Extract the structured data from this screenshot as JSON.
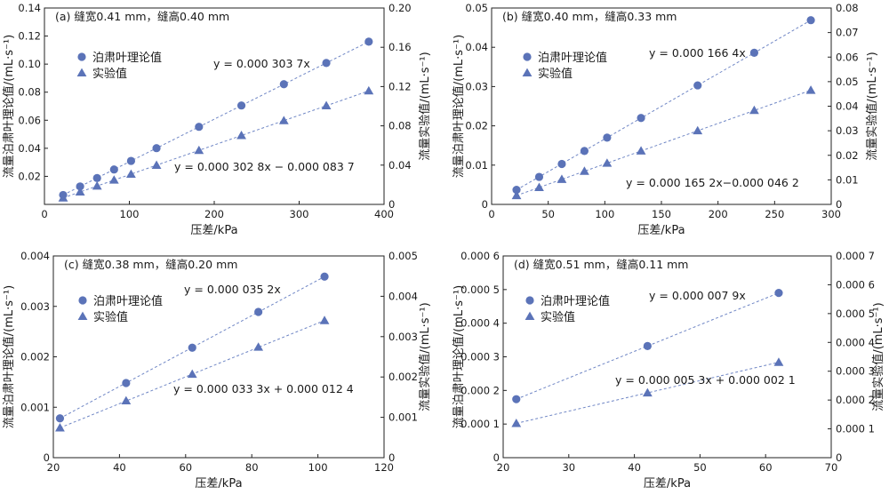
{
  "colors": {
    "marker": "#5b73b8",
    "line": "#6f86c5",
    "axis": "#222222"
  },
  "chart_data": [
    {
      "type": "scatter",
      "panel": "(a)",
      "title": "(a) 缝宽0.41 mm，缝高0.40 mm",
      "xlabel": "压差/kPa",
      "ylabel_left": "流量泊肃叶理论值/(mL·s⁻¹)",
      "ylabel_right": "流量实验值/(mL·s⁻¹)",
      "xlim": [
        0,
        400
      ],
      "ylim_left": [
        0,
        0.14
      ],
      "ylim_right": [
        0,
        0.2
      ],
      "xticks": [
        "0",
        "100",
        "200",
        "300",
        "400"
      ],
      "yticks_left": [
        "0.02",
        "0.04",
        "0.06",
        "0.08",
        "0.10",
        "0.12",
        "0.14"
      ],
      "yticks_right": [
        "0",
        "0.04",
        "0.08",
        "0.12",
        "0.16",
        "0.20"
      ],
      "legend": [
        "泊肃叶理论值",
        "实验值"
      ],
      "series": [
        {
          "name": "泊肃叶理论值",
          "marker": "circle",
          "axis": "left",
          "x": [
            22,
            42,
            62,
            82,
            102,
            132,
            182,
            232,
            282,
            332,
            382
          ],
          "y": [
            0.0067,
            0.0128,
            0.0188,
            0.0249,
            0.031,
            0.0401,
            0.0553,
            0.0705,
            0.0857,
            0.1008,
            0.116
          ],
          "fit": "y = 0.000 303 7x"
        },
        {
          "name": "实验值",
          "marker": "triangle",
          "axis": "right",
          "x": [
            22,
            42,
            62,
            82,
            102,
            132,
            182,
            232,
            282,
            332,
            382
          ],
          "y": [
            0.0066,
            0.0127,
            0.0187,
            0.0248,
            0.0308,
            0.0399,
            0.055,
            0.0702,
            0.0853,
            0.1005,
            0.1156
          ],
          "fit": "y = 0.000 302 8x − 0.000 083 7"
        }
      ]
    },
    {
      "type": "scatter",
      "panel": "(b)",
      "title": "(b) 缝宽0.40 mm，缝高0.33 mm",
      "xlabel": "压差/kPa",
      "ylabel_left": "流量泊肃叶理论值/(mL·s⁻¹)",
      "ylabel_right": "流量实验值/(mL·s⁻¹)",
      "xlim": [
        0,
        300
      ],
      "ylim_left": [
        0,
        0.05
      ],
      "ylim_right": [
        0,
        0.08
      ],
      "xticks": [
        "50",
        "100",
        "150",
        "200",
        "250",
        "300"
      ],
      "yticks_left": [
        "0",
        "0.01",
        "0.02",
        "0.03",
        "0.04",
        "0.05"
      ],
      "yticks_right": [
        "0",
        "0.01",
        "0.02",
        "0.03",
        "0.04",
        "0.05",
        "0.06",
        "0.07",
        "0.08"
      ],
      "legend": [
        "泊肃叶理论值",
        "实验值"
      ],
      "series": [
        {
          "name": "泊肃叶理论值",
          "marker": "circle",
          "axis": "left",
          "x": [
            22,
            42,
            62,
            82,
            102,
            132,
            182,
            232,
            282
          ],
          "y": [
            0.0037,
            0.007,
            0.0103,
            0.0136,
            0.017,
            0.022,
            0.0303,
            0.0386,
            0.0469
          ],
          "fit": "y = 0.000 166 4x"
        },
        {
          "name": "实验值",
          "marker": "triangle",
          "axis": "right",
          "x": [
            22,
            42,
            62,
            82,
            102,
            132,
            182,
            232,
            282
          ],
          "y": [
            0.0036,
            0.0069,
            0.0102,
            0.0135,
            0.0168,
            0.0218,
            0.03,
            0.0383,
            0.0465
          ],
          "fit": "y = 0.000 165 2x−0.000 046 2"
        }
      ]
    },
    {
      "type": "scatter",
      "panel": "(c)",
      "title": "(c) 缝宽0.38 mm，缝高0.20 mm",
      "xlabel": "压差/kPa",
      "ylabel_left": "流量泊肃叶理论值/(mL·s⁻¹)",
      "ylabel_right": "流量实验值/(mL·s⁻¹)",
      "xlim": [
        20,
        120
      ],
      "ylim_left": [
        0,
        0.004
      ],
      "ylim_right": [
        0,
        0.005
      ],
      "xticks": [
        "20",
        "40",
        "60",
        "80",
        "100",
        "120"
      ],
      "yticks_left": [
        "0",
        "0.001",
        "0.002",
        "0.003",
        "0.004"
      ],
      "yticks_right": [
        "0",
        "0.001",
        "0.002",
        "0.003",
        "0.004",
        "0.005"
      ],
      "legend": [
        "泊肃叶理论值",
        "实验值"
      ],
      "series": [
        {
          "name": "泊肃叶理论值",
          "marker": "circle",
          "axis": "left",
          "x": [
            22,
            42,
            62,
            82,
            102
          ],
          "y": [
            0.00078,
            0.00148,
            0.00218,
            0.00289,
            0.00359
          ],
          "fit": "y = 0.000 035 2x"
        },
        {
          "name": "实验值",
          "marker": "triangle",
          "axis": "right",
          "x": [
            22,
            42,
            62,
            82,
            102
          ],
          "y": [
            0.00074,
            0.00141,
            0.00207,
            0.00274,
            0.0034
          ],
          "fit": "y = 0.000 033 3x + 0.000 012 4"
        }
      ]
    },
    {
      "type": "scatter",
      "panel": "(d)",
      "title": "(d) 缝宽0.51 mm，缝高0.11 mm",
      "xlabel": "压差/kPa",
      "ylabel_left": "流量泊肃叶理论值/(mL·s⁻¹)",
      "ylabel_right": "流量实验值/(mL·s⁻¹)",
      "xlim": [
        20,
        70
      ],
      "ylim_left": [
        0,
        0.0006
      ],
      "ylim_right": [
        0,
        0.0007
      ],
      "xticks": [
        "20",
        "30",
        "40",
        "50",
        "60",
        "70"
      ],
      "yticks_left": [
        "0",
        "0.000 1",
        "0.000 2",
        "0.000 3",
        "0.000 4",
        "0.000 5",
        "0.000 6"
      ],
      "yticks_right": [
        "0",
        "0.000 1",
        "0.000 2",
        "0.000 3",
        "0.000 4",
        "0.000 5",
        "0.000 6",
        "0.000 7"
      ],
      "legend": [
        "泊肃叶理论值",
        "实验值"
      ],
      "series": [
        {
          "name": "泊肃叶理论值",
          "marker": "circle",
          "axis": "left",
          "x": [
            22,
            42,
            62
          ],
          "y": [
            0.000174,
            0.000332,
            0.00049
          ],
          "fit": "y = 0.000 007 9x"
        },
        {
          "name": "实验值",
          "marker": "triangle",
          "axis": "right",
          "x": [
            22,
            42,
            62
          ],
          "y": [
            0.000119,
            0.000225,
            0.000331
          ],
          "fit": "y = 0.000 005 3x + 0.000 002 1"
        }
      ]
    }
  ]
}
